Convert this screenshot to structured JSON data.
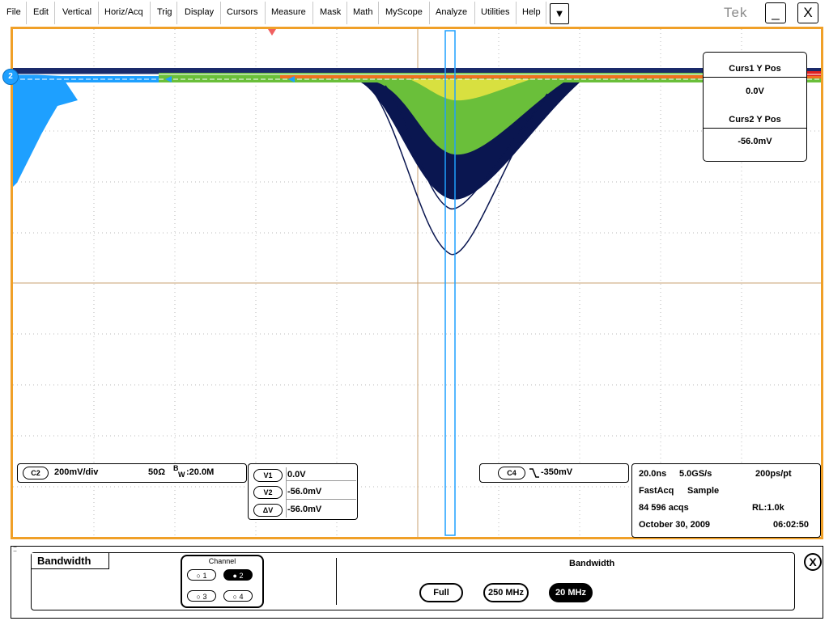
{
  "menu": {
    "items": [
      "File",
      "Edit",
      "Vertical",
      "Horiz/Acq",
      "Trig",
      "Display",
      "Cursors",
      "Measure",
      "Mask",
      "Math",
      "MyScope",
      "Analyze",
      "Utilities",
      "Help"
    ],
    "more": "▼",
    "brand": "Tek",
    "minimize": "_",
    "close": "X"
  },
  "scope": {
    "channel_marker": "2",
    "trace_color": "#1ea0ff",
    "graticule_border_color": "#f0a028"
  },
  "channel_readout": {
    "badge": "C2",
    "scale": "200mV/div",
    "impedance": "50Ω",
    "bw_label_b": "B",
    "bw_label_w": "W",
    "bw_value": ":20.0M"
  },
  "cursor_readout": {
    "rows": [
      {
        "key": "V1",
        "value": "0.0V"
      },
      {
        "key": "V2",
        "value": "-56.0mV"
      },
      {
        "key": "ΔV",
        "value": "-56.0mV"
      }
    ]
  },
  "trigger_readout": {
    "badge": "C4",
    "level": "-350mV"
  },
  "acq_readout": {
    "timebase": "20.0ns",
    "sample_rate": "5.0GS/s",
    "resolution": "200ps/pt",
    "mode": "FastAcq",
    "mode2": "Sample",
    "acqs": "84 596 acqs",
    "record_length": "RL:1.0k",
    "date": "October 30, 2009",
    "time": "06:02:50"
  },
  "cursor_panel": {
    "curs1_label": "Curs1 Y Pos",
    "curs1_value": "0.0V",
    "curs2_label": "Curs2 Y Pos",
    "curs2_value": "-56.0mV"
  },
  "bottom": {
    "title": "Bandwidth",
    "channel_label": "Channel",
    "channels": [
      "1",
      "2",
      "3",
      "4"
    ],
    "selected_channel": "2",
    "bw_heading": "Bandwidth",
    "bw_options": [
      "Full",
      "250 MHz",
      "20 MHz"
    ],
    "selected_bw": "20 MHz",
    "close": "X"
  }
}
